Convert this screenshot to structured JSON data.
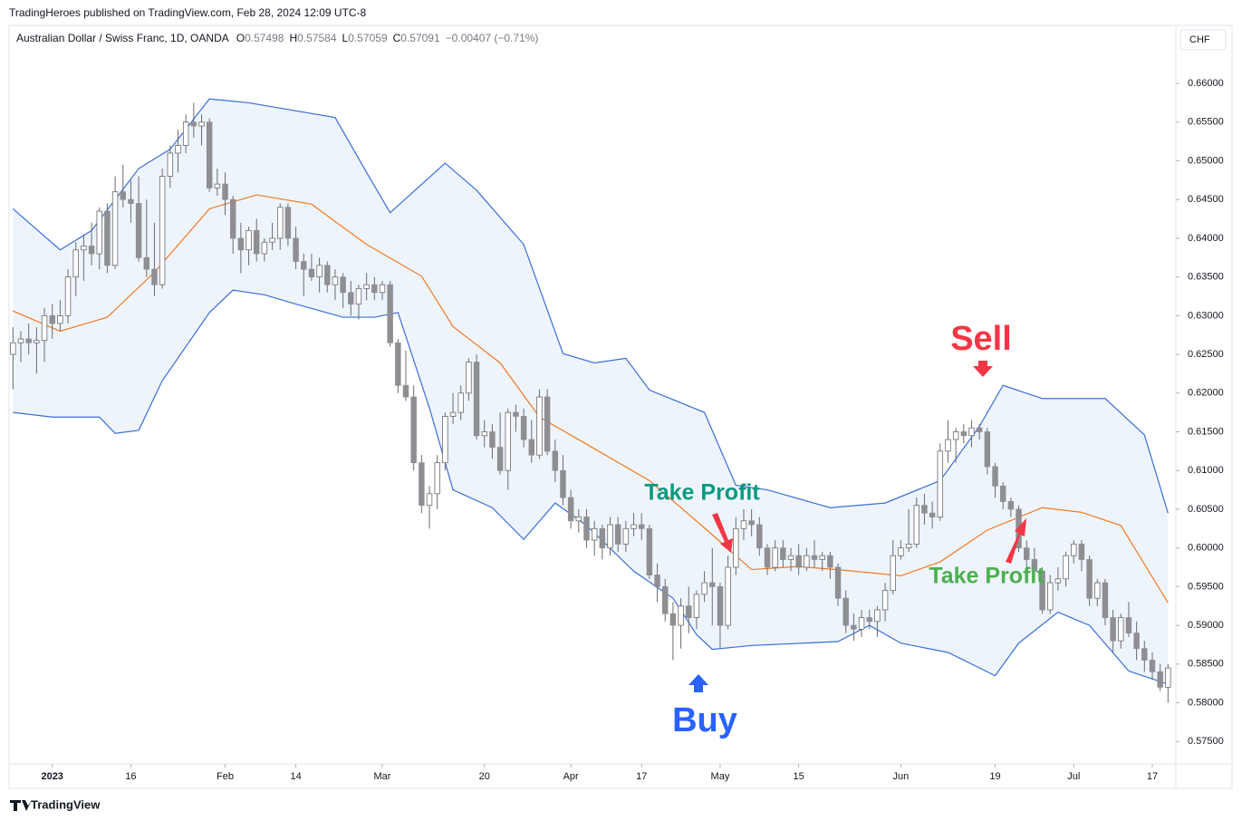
{
  "header": {
    "published": "TradingHeroes published on TradingView.com, Feb 28, 2024 12:09 UTC-8"
  },
  "footer": {
    "brand": "TradingView"
  },
  "chart_data": {
    "type": "candlestick",
    "legend": {
      "symbol": "Australian Dollar / Swiss Franc, 1D, OANDA",
      "fields": [
        {
          "label": "O",
          "value": 0.57498
        },
        {
          "label": "H",
          "value": 0.57584
        },
        {
          "label": "L",
          "value": 0.57059
        },
        {
          "label": "C",
          "value": 0.57091
        }
      ],
      "change": "−0.00407 (−0.71%)"
    },
    "currency": "CHF",
    "up_color": "#ffffff",
    "down_color": "#8e8e93",
    "wick_color": "#6b6b70",
    "ohlc": [
      [
        0.625,
        0.6285,
        0.6205,
        0.6265
      ],
      [
        0.6265,
        0.628,
        0.624,
        0.627
      ],
      [
        0.627,
        0.629,
        0.625,
        0.6265
      ],
      [
        0.6265,
        0.6285,
        0.6225,
        0.6268
      ],
      [
        0.6268,
        0.631,
        0.624,
        0.63
      ],
      [
        0.63,
        0.6315,
        0.627,
        0.629
      ],
      [
        0.629,
        0.632,
        0.628,
        0.63
      ],
      [
        0.63,
        0.636,
        0.629,
        0.635
      ],
      [
        0.635,
        0.6395,
        0.6325,
        0.6385
      ],
      [
        0.6385,
        0.6405,
        0.6345,
        0.639
      ],
      [
        0.639,
        0.642,
        0.6365,
        0.638
      ],
      [
        0.638,
        0.644,
        0.636,
        0.6435
      ],
      [
        0.6435,
        0.6445,
        0.6355,
        0.6365
      ],
      [
        0.6365,
        0.648,
        0.636,
        0.646
      ],
      [
        0.646,
        0.6495,
        0.644,
        0.645
      ],
      [
        0.645,
        0.6475,
        0.642,
        0.6445
      ],
      [
        0.6445,
        0.648,
        0.637,
        0.6375
      ],
      [
        0.6375,
        0.645,
        0.635,
        0.636
      ],
      [
        0.636,
        0.642,
        0.6325,
        0.634
      ],
      [
        0.634,
        0.649,
        0.6335,
        0.648
      ],
      [
        0.648,
        0.652,
        0.6465,
        0.651
      ],
      [
        0.651,
        0.654,
        0.6485,
        0.652
      ],
      [
        0.652,
        0.656,
        0.651,
        0.655
      ],
      [
        0.655,
        0.6575,
        0.653,
        0.6545
      ],
      [
        0.6545,
        0.656,
        0.652,
        0.655
      ],
      [
        0.655,
        0.6555,
        0.646,
        0.6465
      ],
      [
        0.6465,
        0.649,
        0.6455,
        0.647
      ],
      [
        0.647,
        0.6485,
        0.643,
        0.645
      ],
      [
        0.645,
        0.6455,
        0.638,
        0.64
      ],
      [
        0.64,
        0.642,
        0.6355,
        0.6385
      ],
      [
        0.6385,
        0.6415,
        0.6365,
        0.641
      ],
      [
        0.641,
        0.6425,
        0.637,
        0.638
      ],
      [
        0.638,
        0.64,
        0.637,
        0.6395
      ],
      [
        0.6395,
        0.642,
        0.6385,
        0.64
      ],
      [
        0.64,
        0.6445,
        0.6385,
        0.644
      ],
      [
        0.644,
        0.6445,
        0.639,
        0.64
      ],
      [
        0.64,
        0.6415,
        0.636,
        0.637
      ],
      [
        0.637,
        0.638,
        0.6325,
        0.636
      ],
      [
        0.636,
        0.638,
        0.6345,
        0.635
      ],
      [
        0.635,
        0.6375,
        0.633,
        0.6365
      ],
      [
        0.6365,
        0.637,
        0.633,
        0.634
      ],
      [
        0.634,
        0.636,
        0.632,
        0.635
      ],
      [
        0.635,
        0.6355,
        0.631,
        0.633
      ],
      [
        0.633,
        0.6345,
        0.63,
        0.6315
      ],
      [
        0.6315,
        0.634,
        0.6295,
        0.6335
      ],
      [
        0.6335,
        0.6355,
        0.632,
        0.634
      ],
      [
        0.634,
        0.635,
        0.632,
        0.633
      ],
      [
        0.633,
        0.6345,
        0.632,
        0.634
      ],
      [
        0.634,
        0.6345,
        0.626,
        0.6265
      ],
      [
        0.6265,
        0.627,
        0.62,
        0.621
      ],
      [
        0.621,
        0.6255,
        0.619,
        0.6195
      ],
      [
        0.6195,
        0.621,
        0.61,
        0.611
      ],
      [
        0.611,
        0.612,
        0.6045,
        0.6055
      ],
      [
        0.6055,
        0.608,
        0.6025,
        0.607
      ],
      [
        0.607,
        0.612,
        0.605,
        0.611
      ],
      [
        0.611,
        0.6175,
        0.61,
        0.617
      ],
      [
        0.617,
        0.62,
        0.616,
        0.6175
      ],
      [
        0.6175,
        0.621,
        0.6165,
        0.62
      ],
      [
        0.62,
        0.6245,
        0.619,
        0.624
      ],
      [
        0.624,
        0.625,
        0.614,
        0.6145
      ],
      [
        0.6145,
        0.6165,
        0.613,
        0.615
      ],
      [
        0.615,
        0.616,
        0.6115,
        0.613
      ],
      [
        0.613,
        0.6175,
        0.6095,
        0.61
      ],
      [
        0.61,
        0.618,
        0.6075,
        0.6175
      ],
      [
        0.6175,
        0.6185,
        0.615,
        0.617
      ],
      [
        0.617,
        0.618,
        0.613,
        0.614
      ],
      [
        0.614,
        0.6165,
        0.611,
        0.612
      ],
      [
        0.612,
        0.6205,
        0.6115,
        0.6195
      ],
      [
        0.6195,
        0.6205,
        0.612,
        0.6125
      ],
      [
        0.6125,
        0.614,
        0.6085,
        0.61
      ],
      [
        0.61,
        0.612,
        0.6055,
        0.6065
      ],
      [
        0.6065,
        0.6075,
        0.6025,
        0.6035
      ],
      [
        0.6035,
        0.605,
        0.602,
        0.604
      ],
      [
        0.604,
        0.605,
        0.6,
        0.601
      ],
      [
        0.601,
        0.6035,
        0.599,
        0.6025
      ],
      [
        0.6025,
        0.603,
        0.5985,
        0.6
      ],
      [
        0.6,
        0.604,
        0.599,
        0.603
      ],
      [
        0.603,
        0.604,
        0.5995,
        0.6005
      ],
      [
        0.6005,
        0.6035,
        0.5995,
        0.6025
      ],
      [
        0.6025,
        0.6045,
        0.6015,
        0.603
      ],
      [
        0.603,
        0.6045,
        0.601,
        0.6025
      ],
      [
        0.6025,
        0.603,
        0.596,
        0.5965
      ],
      [
        0.5965,
        0.598,
        0.593,
        0.595
      ],
      [
        0.595,
        0.596,
        0.5905,
        0.5915
      ],
      [
        0.5915,
        0.593,
        0.5855,
        0.59
      ],
      [
        0.59,
        0.5935,
        0.587,
        0.5925
      ],
      [
        0.5925,
        0.595,
        0.589,
        0.591
      ],
      [
        0.591,
        0.5945,
        0.5895,
        0.594
      ],
      [
        0.594,
        0.597,
        0.593,
        0.5955
      ],
      [
        0.5955,
        0.6,
        0.59,
        0.595
      ],
      [
        0.595,
        0.5955,
        0.587,
        0.59
      ],
      [
        0.59,
        0.599,
        0.5895,
        0.5975
      ],
      [
        0.5975,
        0.604,
        0.5965,
        0.6025
      ],
      [
        0.6025,
        0.605,
        0.601,
        0.6035
      ],
      [
        0.6035,
        0.605,
        0.6015,
        0.603
      ],
      [
        0.603,
        0.604,
        0.599,
        0.6
      ],
      [
        0.6,
        0.6005,
        0.5965,
        0.5975
      ],
      [
        0.5975,
        0.601,
        0.597,
        0.6
      ],
      [
        0.6,
        0.601,
        0.5975,
        0.5985
      ],
      [
        0.5985,
        0.6,
        0.597,
        0.599
      ],
      [
        0.599,
        0.6005,
        0.5965,
        0.5975
      ],
      [
        0.5975,
        0.6,
        0.597,
        0.599
      ],
      [
        0.599,
        0.601,
        0.5975,
        0.5985
      ],
      [
        0.5985,
        0.5995,
        0.597,
        0.599
      ],
      [
        0.599,
        0.5995,
        0.596,
        0.5975
      ],
      [
        0.5975,
        0.598,
        0.5925,
        0.5935
      ],
      [
        0.5935,
        0.5945,
        0.589,
        0.59
      ],
      [
        0.59,
        0.5915,
        0.588,
        0.5895
      ],
      [
        0.5895,
        0.592,
        0.5885,
        0.591
      ],
      [
        0.591,
        0.592,
        0.5895,
        0.5905
      ],
      [
        0.5905,
        0.5925,
        0.5885,
        0.592
      ],
      [
        0.592,
        0.5955,
        0.5905,
        0.5945
      ],
      [
        0.5945,
        0.601,
        0.594,
        0.599
      ],
      [
        0.599,
        0.601,
        0.5985,
        0.6
      ],
      [
        0.6,
        0.605,
        0.5995,
        0.6005
      ],
      [
        0.6005,
        0.6065,
        0.6,
        0.6055
      ],
      [
        0.6055,
        0.607,
        0.603,
        0.6045
      ],
      [
        0.6045,
        0.606,
        0.6025,
        0.604
      ],
      [
        0.604,
        0.6135,
        0.6035,
        0.6125
      ],
      [
        0.6125,
        0.6165,
        0.611,
        0.614
      ],
      [
        0.614,
        0.6155,
        0.611,
        0.615
      ],
      [
        0.615,
        0.616,
        0.6135,
        0.6145
      ],
      [
        0.6145,
        0.6165,
        0.613,
        0.6155
      ],
      [
        0.6155,
        0.616,
        0.614,
        0.615
      ],
      [
        0.615,
        0.6155,
        0.6095,
        0.6105
      ],
      [
        0.6105,
        0.611,
        0.6065,
        0.608
      ],
      [
        0.608,
        0.6085,
        0.605,
        0.606
      ],
      [
        0.606,
        0.6065,
        0.604,
        0.605
      ],
      [
        0.605,
        0.6055,
        0.5995,
        0.6
      ],
      [
        0.6,
        0.601,
        0.5975,
        0.5985
      ],
      [
        0.5985,
        0.6,
        0.596,
        0.597
      ],
      [
        0.597,
        0.5975,
        0.5915,
        0.592
      ],
      [
        0.592,
        0.5965,
        0.5915,
        0.5955
      ],
      [
        0.5955,
        0.5975,
        0.5945,
        0.596
      ],
      [
        0.596,
        0.5995,
        0.595,
        0.599
      ],
      [
        0.599,
        0.601,
        0.598,
        0.6005
      ],
      [
        0.6005,
        0.601,
        0.597,
        0.5985
      ],
      [
        0.5985,
        0.599,
        0.5925,
        0.5935
      ],
      [
        0.5935,
        0.596,
        0.5925,
        0.5955
      ],
      [
        0.5955,
        0.596,
        0.59,
        0.591
      ],
      [
        0.591,
        0.592,
        0.5865,
        0.588
      ],
      [
        0.588,
        0.5915,
        0.587,
        0.591
      ],
      [
        0.591,
        0.593,
        0.5885,
        0.589
      ],
      [
        0.589,
        0.5905,
        0.5855,
        0.587
      ],
      [
        0.587,
        0.588,
        0.584,
        0.5855
      ],
      [
        0.5855,
        0.5865,
        0.583,
        0.584
      ],
      [
        0.584,
        0.585,
        0.5815,
        0.582
      ],
      [
        0.582,
        0.585,
        0.58,
        0.5845
      ]
    ],
    "bands": {
      "fill_color": "#eef4fb",
      "upper": {
        "color": "#3a6fd8",
        "x": [
          0,
          6,
          10,
          16,
          20,
          25,
          30,
          41,
          45,
          48,
          55,
          59,
          65,
          70,
          74,
          78,
          81,
          88,
          92,
          96,
          104,
          111,
          118,
          123,
          126,
          131,
          139,
          144,
          147
        ],
        "values": [
          0.6438,
          0.6385,
          0.641,
          0.649,
          0.6515,
          0.658,
          0.6575,
          0.6556,
          0.6485,
          0.6433,
          0.6497,
          0.6462,
          0.6392,
          0.6251,
          0.6239,
          0.6245,
          0.6204,
          0.6175,
          0.6081,
          0.6075,
          0.6052,
          0.6058,
          0.6087,
          0.6157,
          0.621,
          0.6193,
          0.6193,
          0.6146,
          0.6045
        ]
      },
      "middle": {
        "color": "#f07a22",
        "x": [
          0,
          6,
          12,
          18,
          25,
          31,
          38,
          45,
          52,
          56,
          62,
          67,
          73,
          81,
          89,
          94,
          100,
          107,
          113,
          118,
          124,
          131,
          136,
          141,
          147
        ],
        "values": [
          0.6306,
          0.628,
          0.6298,
          0.6356,
          0.6438,
          0.6456,
          0.6444,
          0.6392,
          0.6351,
          0.6286,
          0.6239,
          0.6169,
          0.6134,
          0.6087,
          0.6017,
          0.5972,
          0.5976,
          0.597,
          0.5964,
          0.5982,
          0.6023,
          0.6052,
          0.6046,
          0.6029,
          0.5929
        ]
      },
      "lower": {
        "color": "#3a6fd8",
        "x": [
          0,
          5,
          11,
          13,
          16,
          19,
          25,
          28,
          32,
          36,
          42,
          46,
          49,
          53,
          56,
          61,
          65,
          69,
          73,
          79,
          84,
          87,
          89,
          94,
          105,
          109,
          113,
          119,
          125,
          128,
          133,
          137,
          142,
          147
        ],
        "values": [
          0.6175,
          0.6169,
          0.6169,
          0.6148,
          0.6152,
          0.6216,
          0.6304,
          0.6333,
          0.6327,
          0.6315,
          0.6298,
          0.6298,
          0.6304,
          0.6181,
          0.6075,
          0.6052,
          0.6011,
          0.6058,
          0.6029,
          0.597,
          0.5935,
          0.5888,
          0.5869,
          0.5874,
          0.5879,
          0.59,
          0.5877,
          0.5865,
          0.5835,
          0.5877,
          0.5917,
          0.59,
          0.5841,
          0.5824
        ]
      }
    },
    "xlim": [
      -0.5,
      148
    ],
    "xticks": [
      {
        "value": 5,
        "label": "2023"
      },
      {
        "value": 15,
        "label": "16"
      },
      {
        "value": 27,
        "label": "Feb"
      },
      {
        "value": 36,
        "label": "14"
      },
      {
        "value": 47,
        "label": "Mar"
      },
      {
        "value": 60,
        "label": "20"
      },
      {
        "value": 71,
        "label": "Apr"
      },
      {
        "value": 80,
        "label": "17"
      },
      {
        "value": 90,
        "label": "May"
      },
      {
        "value": 100,
        "label": "15"
      },
      {
        "value": 113,
        "label": "Jun"
      },
      {
        "value": 125,
        "label": "19"
      },
      {
        "value": 135,
        "label": "Jul"
      },
      {
        "value": 145,
        "label": "17"
      }
    ],
    "ylim": [
      0.5721,
      0.6675
    ],
    "yticks": [
      {
        "value": 0.575,
        "label": "0.57500"
      },
      {
        "value": 0.58,
        "label": "0.58000"
      },
      {
        "value": 0.585,
        "label": "0.58500"
      },
      {
        "value": 0.59,
        "label": "0.59000"
      },
      {
        "value": 0.595,
        "label": "0.59500"
      },
      {
        "value": 0.6,
        "label": "0.60000"
      },
      {
        "value": 0.605,
        "label": "0.60500"
      },
      {
        "value": 0.61,
        "label": "0.61000"
      },
      {
        "value": 0.615,
        "label": "0.61500"
      },
      {
        "value": 0.62,
        "label": "0.62000"
      },
      {
        "value": 0.625,
        "label": "0.62500"
      },
      {
        "value": 0.63,
        "label": "0.63000"
      },
      {
        "value": 0.635,
        "label": "0.63500"
      },
      {
        "value": 0.64,
        "label": "0.64000"
      },
      {
        "value": 0.645,
        "label": "0.64500"
      },
      {
        "value": 0.65,
        "label": "0.65000"
      },
      {
        "value": 0.655,
        "label": "0.65500"
      },
      {
        "value": 0.66,
        "label": "0.66000"
      }
    ],
    "grid": false,
    "annotations": [
      {
        "text": "Sell",
        "color": "#f23645"
      },
      {
        "text": "Buy",
        "color": "#2962ff"
      },
      {
        "text": "Take Profit",
        "color": "#089981"
      },
      {
        "text": "Take Profit",
        "color": "#4caf50"
      }
    ]
  }
}
